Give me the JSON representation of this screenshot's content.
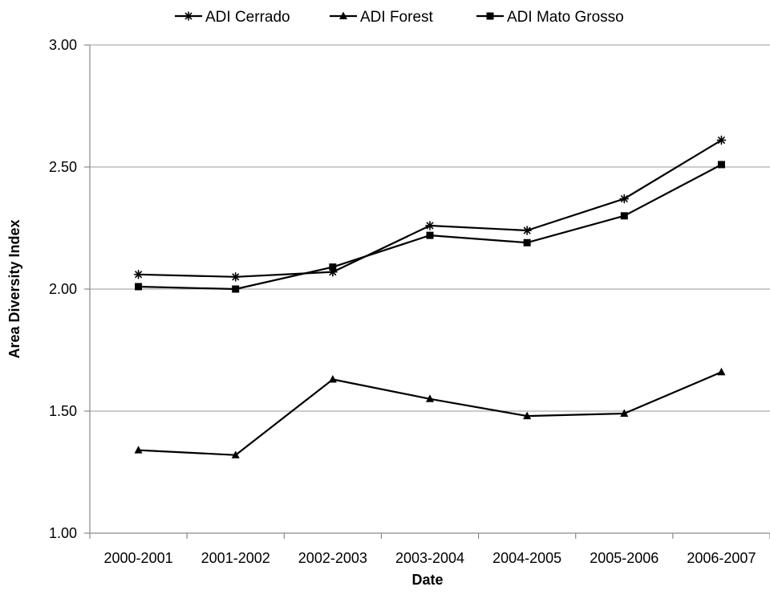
{
  "chart_data": {
    "type": "line",
    "title": "",
    "xlabel": "Date",
    "ylabel": "Area Diversity Index",
    "categories": [
      "2000-2001",
      "2001-2002",
      "2002-2003",
      "2003-2004",
      "2004-2005",
      "2005-2006",
      "2006-2007"
    ],
    "ylim": [
      1.0,
      3.0
    ],
    "yticks": [
      "1.00",
      "1.50",
      "2.00",
      "2.50",
      "3.00"
    ],
    "grid": "horizontal",
    "legend_position": "top",
    "line_color": "#000000",
    "series": [
      {
        "name": "ADI Cerrado",
        "marker": "asterisk",
        "values": [
          2.06,
          2.05,
          2.07,
          2.26,
          2.24,
          2.37,
          2.61
        ]
      },
      {
        "name": "ADI Forest",
        "marker": "triangle",
        "values": [
          1.34,
          1.32,
          1.63,
          1.55,
          1.48,
          1.49,
          1.66
        ]
      },
      {
        "name": "ADI Mato Grosso",
        "marker": "square",
        "values": [
          2.01,
          2.0,
          2.09,
          2.22,
          2.19,
          2.3,
          2.51
        ]
      }
    ]
  }
}
